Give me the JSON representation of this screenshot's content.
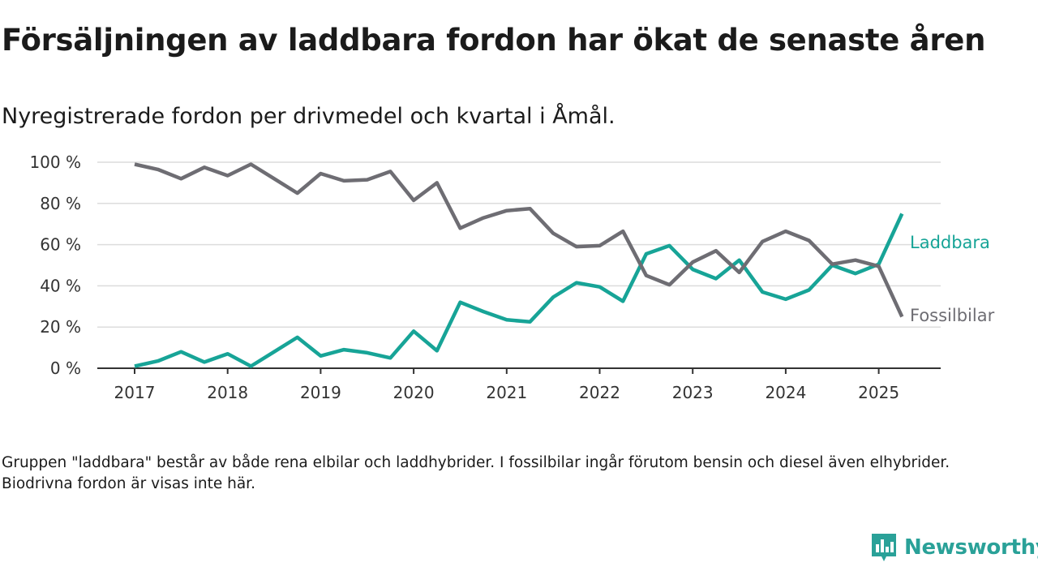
{
  "title": "Försäljningen av laddbara fordon har ökat de senaste åren",
  "subtitle": "Nyregistrerade fordon per drivmedel och kvartal i Åmål.",
  "footnote": "Gruppen \"laddbara\" består av både rena elbilar och laddhybrider. I fossilbilar ingår förutom bensin och diesel även elhybrider. Biodrivna fordon är visas inte här.",
  "brand": {
    "name": "Newsworthy",
    "icon": "newsworthy-logo-icon"
  },
  "colors": {
    "laddbara": "#17a497",
    "fossil": "#6e6d73",
    "grid": "#dcdcdc",
    "axis": "#333333"
  },
  "chart_data": {
    "type": "line",
    "x_start_year": 2017,
    "quarters_per_year": 4,
    "x_ticks": [
      "2017",
      "2018",
      "2019",
      "2020",
      "2021",
      "2022",
      "2023",
      "2024",
      "2025"
    ],
    "y_ticks": [
      "0 %",
      "20 %",
      "40 %",
      "60 %",
      "80 %",
      "100 %"
    ],
    "ylim": [
      0,
      100
    ],
    "y_unit": "%",
    "grid": true,
    "legend": "direct-labels-right",
    "series": [
      {
        "name": "Laddbara",
        "key": "laddbara",
        "values": [
          1,
          3.5,
          8,
          3,
          7,
          1,
          8,
          15,
          6,
          9,
          7.5,
          5,
          18,
          8.5,
          32,
          27.5,
          23.5,
          22.5,
          34.5,
          41.5,
          39.5,
          32.5,
          55.5,
          59.5,
          48,
          43.5,
          52.5,
          37,
          33.5,
          38,
          50,
          46,
          50.5,
          75
        ]
      },
      {
        "name": "Fossilbilar",
        "key": "fossil",
        "values": [
          99,
          96.5,
          92,
          97.5,
          93.5,
          99,
          92,
          85,
          94.5,
          91,
          91.5,
          95.5,
          81.5,
          90,
          68,
          73,
          76.5,
          77.5,
          65.5,
          59,
          59.5,
          66.5,
          45,
          40.5,
          51.5,
          57,
          46.5,
          61.5,
          66.5,
          62,
          50.5,
          52.5,
          49.5,
          25
        ]
      }
    ]
  }
}
